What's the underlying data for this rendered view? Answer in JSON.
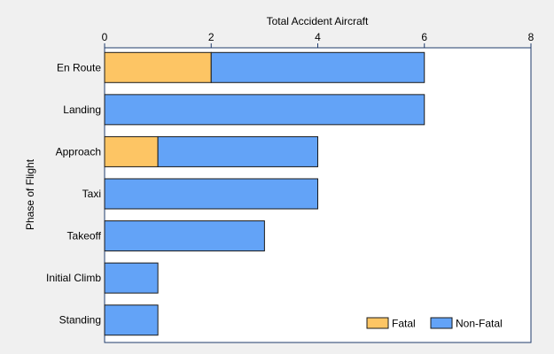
{
  "chart_data": {
    "type": "bar",
    "orientation": "horizontal",
    "stacked": true,
    "xlabel": "Total Accident Aircraft",
    "ylabel": "Phase of Flight",
    "xlim": [
      0,
      8
    ],
    "xticks": [
      0,
      2,
      4,
      6,
      8
    ],
    "x_axis_position": "top",
    "categories": [
      "En Route",
      "Landing",
      "Approach",
      "Taxi",
      "Takeoff",
      "Initial Climb",
      "Standing"
    ],
    "series": [
      {
        "name": "Fatal",
        "values": [
          2,
          0,
          1,
          0,
          0,
          0,
          0
        ],
        "color": "#FDC564"
      },
      {
        "name": "Non-Fatal",
        "values": [
          4,
          6,
          3,
          4,
          3,
          1,
          1
        ],
        "color": "#63A3F7"
      }
    ],
    "legend_position": "bottom-right",
    "grid": false
  }
}
